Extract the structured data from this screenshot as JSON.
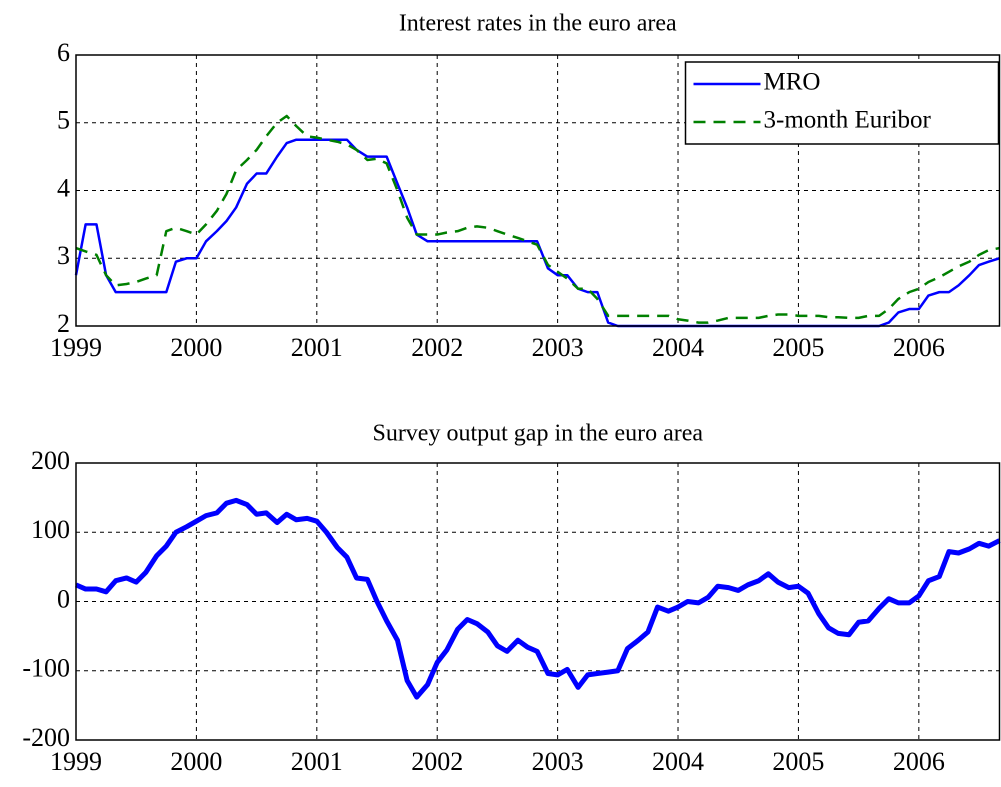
{
  "chart_data": [
    {
      "type": "line",
      "title": "Interest rates in the euro area",
      "x": [
        1999,
        1999.08,
        1999.17,
        1999.25,
        1999.33,
        1999.42,
        1999.5,
        1999.58,
        1999.67,
        1999.75,
        1999.83,
        1999.92,
        2000,
        2000.08,
        2000.17,
        2000.25,
        2000.33,
        2000.42,
        2000.5,
        2000.58,
        2000.67,
        2000.75,
        2000.83,
        2000.92,
        2001,
        2001.08,
        2001.17,
        2001.25,
        2001.33,
        2001.42,
        2001.5,
        2001.58,
        2001.67,
        2001.75,
        2001.83,
        2001.92,
        2002,
        2002.08,
        2002.17,
        2002.25,
        2002.33,
        2002.42,
        2002.5,
        2002.58,
        2002.67,
        2002.75,
        2002.83,
        2002.92,
        2003,
        2003.08,
        2003.17,
        2003.25,
        2003.33,
        2003.42,
        2003.5,
        2003.58,
        2003.67,
        2003.75,
        2003.83,
        2003.92,
        2004,
        2004.08,
        2004.17,
        2004.25,
        2004.33,
        2004.42,
        2004.5,
        2004.58,
        2004.67,
        2004.75,
        2004.83,
        2004.92,
        2005,
        2005.08,
        2005.17,
        2005.25,
        2005.33,
        2005.42,
        2005.5,
        2005.58,
        2005.67,
        2005.75,
        2005.83,
        2005.92,
        2006,
        2006.08,
        2006.17,
        2006.25,
        2006.33,
        2006.42,
        2006.5,
        2006.58,
        2006.67
      ],
      "series": [
        {
          "name": "MRO",
          "color": "#0000ff",
          "dash": false,
          "values": [
            2.75,
            3.5,
            3.5,
            2.75,
            2.5,
            2.5,
            2.5,
            2.5,
            2.5,
            2.5,
            2.95,
            3.0,
            3.0,
            3.25,
            3.4,
            3.55,
            3.75,
            4.1,
            4.25,
            4.25,
            4.5,
            4.7,
            4.75,
            4.75,
            4.75,
            4.75,
            4.75,
            4.75,
            4.6,
            4.5,
            4.5,
            4.5,
            4.1,
            3.75,
            3.35,
            3.25,
            3.25,
            3.25,
            3.25,
            3.25,
            3.25,
            3.25,
            3.25,
            3.25,
            3.25,
            3.25,
            3.25,
            2.85,
            2.75,
            2.75,
            2.55,
            2.5,
            2.5,
            2.05,
            2.0,
            2.0,
            2.0,
            2.0,
            2.0,
            2.0,
            2.0,
            2.0,
            2.0,
            2.0,
            2.0,
            2.0,
            2.0,
            2.0,
            2.0,
            2.0,
            2.0,
            2.0,
            2.0,
            2.0,
            2.0,
            2.0,
            2.0,
            2.0,
            2.0,
            2.0,
            2.0,
            2.05,
            2.2,
            2.25,
            2.25,
            2.45,
            2.5,
            2.5,
            2.6,
            2.75,
            2.9,
            2.95,
            3.0
          ]
        },
        {
          "name": "3-month Euribor",
          "color": "#008000",
          "dash": true,
          "values": [
            3.15,
            3.1,
            3.05,
            2.75,
            2.6,
            2.62,
            2.65,
            2.7,
            2.75,
            3.4,
            3.45,
            3.4,
            3.35,
            3.5,
            3.7,
            3.95,
            4.3,
            4.45,
            4.6,
            4.8,
            5.0,
            5.1,
            4.95,
            4.8,
            4.78,
            4.75,
            4.72,
            4.68,
            4.6,
            4.45,
            4.47,
            4.4,
            4.0,
            3.6,
            3.35,
            3.35,
            3.35,
            3.38,
            3.4,
            3.45,
            3.47,
            3.45,
            3.4,
            3.35,
            3.3,
            3.25,
            3.2,
            2.9,
            2.8,
            2.7,
            2.55,
            2.55,
            2.4,
            2.15,
            2.15,
            2.15,
            2.15,
            2.15,
            2.15,
            2.15,
            2.1,
            2.08,
            2.05,
            2.05,
            2.08,
            2.12,
            2.12,
            2.12,
            2.12,
            2.15,
            2.17,
            2.17,
            2.15,
            2.15,
            2.15,
            2.13,
            2.13,
            2.12,
            2.12,
            2.15,
            2.15,
            2.25,
            2.4,
            2.5,
            2.55,
            2.65,
            2.72,
            2.8,
            2.88,
            2.95,
            3.05,
            3.12,
            3.15
          ]
        }
      ],
      "xlim": [
        1999,
        2006.67
      ],
      "xticks": [
        1999,
        2000,
        2001,
        2002,
        2003,
        2004,
        2005,
        2006
      ],
      "ylim": [
        2,
        6
      ],
      "yticks": [
        2,
        3,
        4,
        5,
        6
      ],
      "grid": true,
      "legend": "upper right"
    },
    {
      "type": "line",
      "title": "Survey output gap in the euro area",
      "x": [
        1999,
        1999.08,
        1999.17,
        1999.25,
        1999.33,
        1999.42,
        1999.5,
        1999.58,
        1999.67,
        1999.75,
        1999.83,
        1999.92,
        2000,
        2000.08,
        2000.17,
        2000.25,
        2000.33,
        2000.42,
        2000.5,
        2000.58,
        2000.67,
        2000.75,
        2000.83,
        2000.92,
        2001,
        2001.08,
        2001.17,
        2001.25,
        2001.33,
        2001.42,
        2001.5,
        2001.58,
        2001.67,
        2001.75,
        2001.83,
        2001.92,
        2002,
        2002.08,
        2002.17,
        2002.25,
        2002.33,
        2002.42,
        2002.5,
        2002.58,
        2002.67,
        2002.75,
        2002.83,
        2002.92,
        2003,
        2003.08,
        2003.17,
        2003.25,
        2003.33,
        2003.42,
        2003.5,
        2003.58,
        2003.67,
        2003.75,
        2003.83,
        2003.92,
        2004,
        2004.08,
        2004.17,
        2004.25,
        2004.33,
        2004.42,
        2004.5,
        2004.58,
        2004.67,
        2004.75,
        2004.83,
        2004.92,
        2005,
        2005.08,
        2005.17,
        2005.25,
        2005.33,
        2005.42,
        2005.5,
        2005.58,
        2005.67,
        2005.75,
        2005.83,
        2005.92,
        2006,
        2006.08,
        2006.17,
        2006.25,
        2006.33,
        2006.42,
        2006.5,
        2006.58,
        2006.67
      ],
      "series": [
        {
          "color": "#0000ff",
          "dash": false,
          "values": [
            24,
            18,
            18,
            14,
            30,
            34,
            28,
            42,
            66,
            80,
            100,
            108,
            116,
            124,
            128,
            142,
            146,
            140,
            126,
            128,
            114,
            126,
            118,
            120,
            116,
            100,
            78,
            64,
            34,
            32,
            0,
            -28,
            -56,
            -114,
            -138,
            -120,
            -88,
            -70,
            -40,
            -26,
            -32,
            -44,
            -64,
            -72,
            -56,
            -66,
            -72,
            -104,
            -106,
            -98,
            -124,
            -106,
            -104,
            -102,
            -100,
            -68,
            -56,
            -44,
            -8,
            -14,
            -8,
            0,
            -2,
            6,
            22,
            20,
            16,
            24,
            30,
            40,
            28,
            20,
            22,
            12,
            -18,
            -38,
            -46,
            -48,
            -30,
            -28,
            -10,
            4,
            -2,
            -2,
            8,
            30,
            36,
            72,
            70,
            76,
            84,
            80,
            88
          ]
        }
      ],
      "xlim": [
        1999,
        2006.67
      ],
      "xticks": [
        1999,
        2000,
        2001,
        2002,
        2003,
        2004,
        2005,
        2006
      ],
      "ylim": [
        -200,
        200
      ],
      "yticks": [
        -200,
        -100,
        0,
        100,
        200
      ],
      "grid": true
    }
  ]
}
